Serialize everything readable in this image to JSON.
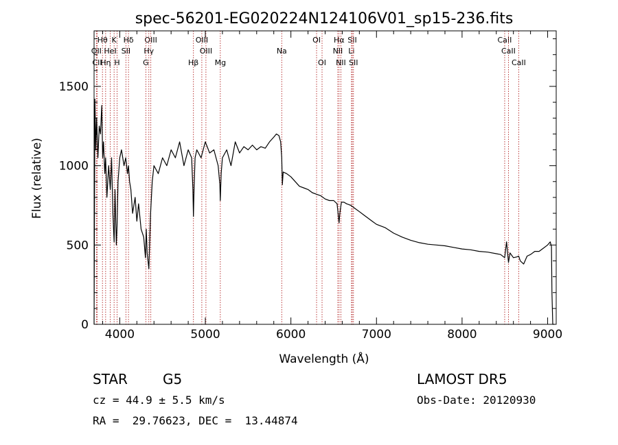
{
  "chart_data": {
    "type": "line",
    "title": "spec-56201-EG020224N124106V01_sp15-236.fits",
    "xlabel": "Wavelength (Å)",
    "ylabel": "Flux (relative)",
    "xlim": [
      3700,
      9100
    ],
    "ylim": [
      0,
      1850
    ],
    "x_ticks": [
      4000,
      5000,
      6000,
      7000,
      8000,
      9000
    ],
    "y_ticks": [
      0,
      500,
      1000,
      1500
    ],
    "grid": false,
    "line_color": "#000000",
    "marker_color": "#b22222",
    "spectral_lines": [
      {
        "label": "Hθ",
        "x": 3798,
        "row": 1
      },
      {
        "label": "K",
        "x": 3934,
        "row": 1
      },
      {
        "label": "Hδ",
        "x": 4102,
        "row": 1
      },
      {
        "label": "OII",
        "x": 3727,
        "row": 2
      },
      {
        "label": "HeI",
        "x": 3889,
        "row": 2
      },
      {
        "label": "SII",
        "x": 4072,
        "row": 2
      },
      {
        "label": "CII",
        "x": 3736,
        "row": 3
      },
      {
        "label": "Hη",
        "x": 3835,
        "row": 3
      },
      {
        "label": "H",
        "x": 3969,
        "row": 3
      },
      {
        "label": "OIII",
        "x": 4363,
        "row": 1
      },
      {
        "label": "Hγ",
        "x": 4340,
        "row": 2
      },
      {
        "label": "G",
        "x": 4305,
        "row": 3
      },
      {
        "label": "OIII",
        "x": 4959,
        "row": 1
      },
      {
        "label": "OIII",
        "x": 5007,
        "row": 2
      },
      {
        "label": "Hβ",
        "x": 4861,
        "row": 3
      },
      {
        "label": "Mg",
        "x": 5175,
        "row": 3
      },
      {
        "label": "Na",
        "x": 5893,
        "row": 2
      },
      {
        "label": "OI",
        "x": 6300,
        "row": 1
      },
      {
        "label": "OI",
        "x": 6364,
        "row": 3
      },
      {
        "label": "Hα",
        "x": 6563,
        "row": 1
      },
      {
        "label": "SII",
        "x": 6717,
        "row": 1
      },
      {
        "label": "NII",
        "x": 6548,
        "row": 2
      },
      {
        "label": "Li",
        "x": 6708,
        "row": 2
      },
      {
        "label": "NII",
        "x": 6584,
        "row": 3
      },
      {
        "label": "SII",
        "x": 6731,
        "row": 3
      },
      {
        "label": "CaII",
        "x": 8498,
        "row": 1
      },
      {
        "label": "CaII",
        "x": 8542,
        "row": 2
      },
      {
        "label": "CaII",
        "x": 8662,
        "row": 3
      }
    ],
    "series": [
      {
        "x": [
          3700,
          3710,
          3720,
          3730,
          3745,
          3760,
          3775,
          3790,
          3800,
          3810,
          3825,
          3835,
          3850,
          3870,
          3889,
          3905,
          3920,
          3934,
          3945,
          3960,
          3969,
          3980,
          4000,
          4020,
          4050,
          4070,
          4090,
          4102,
          4115,
          4130,
          4150,
          4180,
          4200,
          4220,
          4250,
          4280,
          4300,
          4310,
          4320,
          4340,
          4360,
          4380,
          4400,
          4450,
          4500,
          4550,
          4600,
          4650,
          4700,
          4750,
          4800,
          4840,
          4855,
          4861,
          4868,
          4880,
          4900,
          4950,
          5000,
          5050,
          5100,
          5150,
          5170,
          5175,
          5185,
          5200,
          5250,
          5300,
          5350,
          5400,
          5450,
          5500,
          5550,
          5600,
          5650,
          5700,
          5750,
          5800,
          5830,
          5860,
          5880,
          5893,
          5900,
          5910,
          5950,
          6000,
          6050,
          6100,
          6150,
          6200,
          6250,
          6300,
          6350,
          6400,
          6450,
          6500,
          6540,
          6555,
          6563,
          6572,
          6590,
          6620,
          6650,
          6700,
          6750,
          6800,
          6850,
          6900,
          6950,
          7000,
          7100,
          7200,
          7300,
          7400,
          7500,
          7600,
          7700,
          7800,
          7900,
          8000,
          8100,
          8200,
          8300,
          8400,
          8450,
          8498,
          8520,
          8542,
          8560,
          8600,
          8640,
          8662,
          8680,
          8720,
          8760,
          8800,
          8850,
          8900,
          8950,
          9000,
          9030,
          9045,
          9050,
          9060,
          9080
        ],
        "y": [
          0,
          1420,
          1100,
          1300,
          1050,
          1250,
          1200,
          1380,
          1050,
          1150,
          950,
          1050,
          800,
          1000,
          850,
          1050,
          700,
          520,
          850,
          500,
          620,
          900,
          1050,
          1100,
          1000,
          1050,
          950,
          1000,
          900,
          850,
          700,
          800,
          650,
          760,
          600,
          550,
          420,
          600,
          450,
          350,
          700,
          900,
          1000,
          950,
          1050,
          1000,
          1100,
          1050,
          1150,
          1000,
          1100,
          1050,
          850,
          680,
          850,
          1050,
          1100,
          1050,
          1150,
          1080,
          1100,
          1000,
          880,
          780,
          950,
          1050,
          1100,
          1000,
          1150,
          1080,
          1120,
          1100,
          1130,
          1100,
          1120,
          1110,
          1150,
          1180,
          1200,
          1190,
          1150,
          1050,
          880,
          960,
          950,
          930,
          900,
          870,
          860,
          850,
          830,
          820,
          810,
          790,
          780,
          780,
          760,
          680,
          640,
          700,
          770,
          770,
          760,
          750,
          730,
          710,
          690,
          670,
          650,
          630,
          610,
          575,
          550,
          530,
          515,
          505,
          500,
          495,
          485,
          475,
          470,
          460,
          455,
          445,
          440,
          420,
          520,
          390,
          450,
          420,
          425,
          430,
          400,
          380,
          430,
          440,
          460,
          460,
          480,
          500,
          520,
          490,
          200,
          0,
          0
        ]
      }
    ]
  },
  "info": {
    "object_class": "STAR",
    "subclass": "G5",
    "survey": "LAMOST DR5",
    "redshift_line": "cz = 44.9 ± 5.5 km/s",
    "obs_date": "Obs-Date: 20120930",
    "coords_line": "RA =  29.76623, DEC =  13.44874"
  }
}
